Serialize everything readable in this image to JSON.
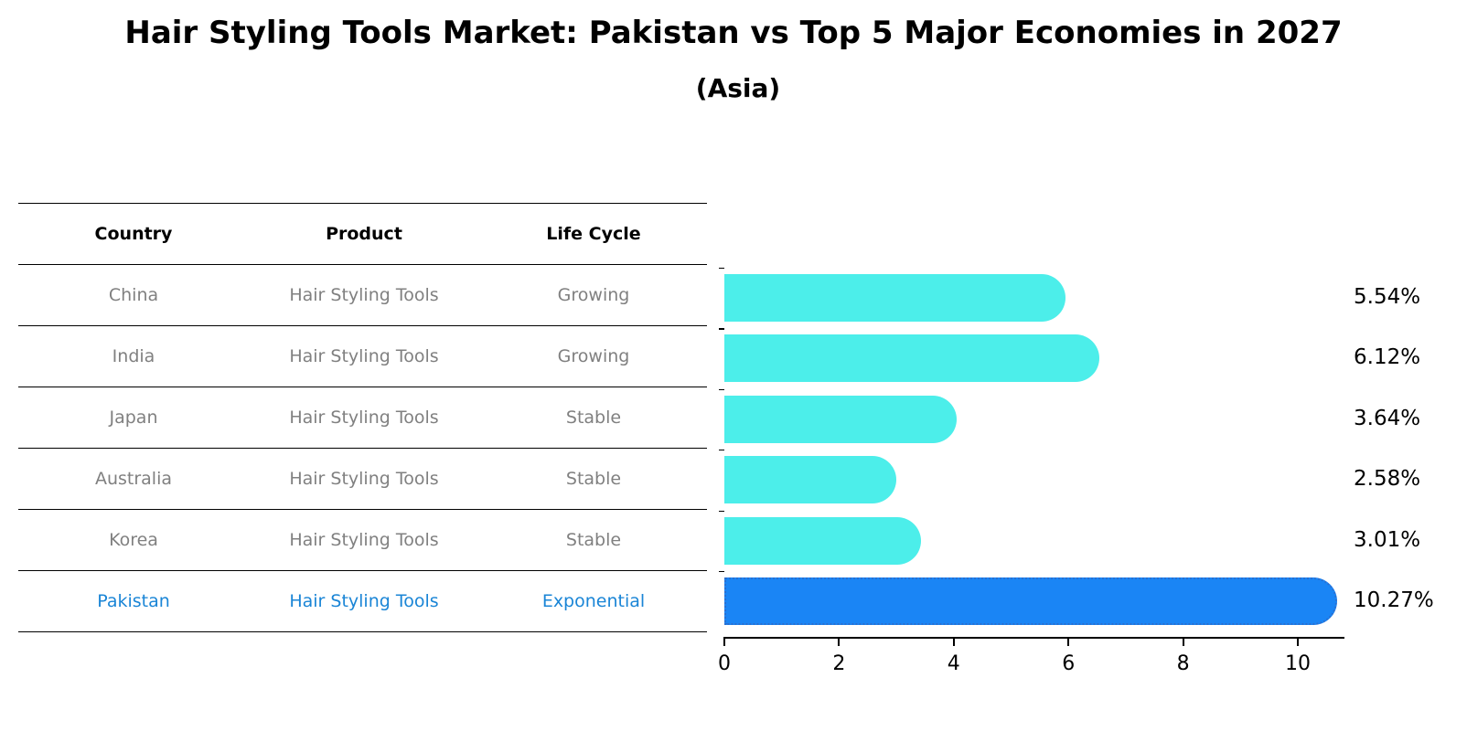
{
  "title": "Hair Styling Tools Market: Pakistan vs Top 5 Major Economies in 2027",
  "subtitle": "(Asia)",
  "table": {
    "headers": [
      "Country",
      "Product",
      "Life Cycle"
    ],
    "rows": [
      {
        "country": "China",
        "product": "Hair Styling Tools",
        "life_cycle": "Growing"
      },
      {
        "country": "India",
        "product": "Hair Styling Tools",
        "life_cycle": "Growing"
      },
      {
        "country": "Japan",
        "product": "Hair Styling Tools",
        "life_cycle": "Stable"
      },
      {
        "country": "Australia",
        "product": "Hair Styling Tools",
        "life_cycle": "Stable"
      },
      {
        "country": "Korea",
        "product": "Hair Styling Tools",
        "life_cycle": "Stable"
      },
      {
        "country": "Pakistan",
        "product": "Hair Styling Tools",
        "life_cycle": "Exponential"
      }
    ]
  },
  "colors": {
    "bar_default": "#4ceeea",
    "bar_highlight": "#1a85f5",
    "text_muted": "#808080",
    "text_highlight": "#1a85d6"
  },
  "chart_data": {
    "type": "bar",
    "orientation": "horizontal",
    "title": "Hair Styling Tools Market: Pakistan vs Top 5 Major Economies in 2027",
    "subtitle": "(Asia)",
    "categories": [
      "China",
      "India",
      "Japan",
      "Australia",
      "Korea",
      "Pakistan"
    ],
    "values": [
      5.54,
      6.12,
      3.64,
      2.58,
      3.01,
      10.27
    ],
    "value_labels": [
      "5.54%",
      "6.12%",
      "3.64%",
      "2.58%",
      "3.01%",
      "10.27%"
    ],
    "highlight": "Pakistan",
    "xlabel": "",
    "ylabel": "",
    "xlim": [
      0,
      10.8
    ],
    "xticks": [
      "0",
      "2",
      "4",
      "6",
      "8",
      "10"
    ],
    "grid": false,
    "legend": null
  }
}
